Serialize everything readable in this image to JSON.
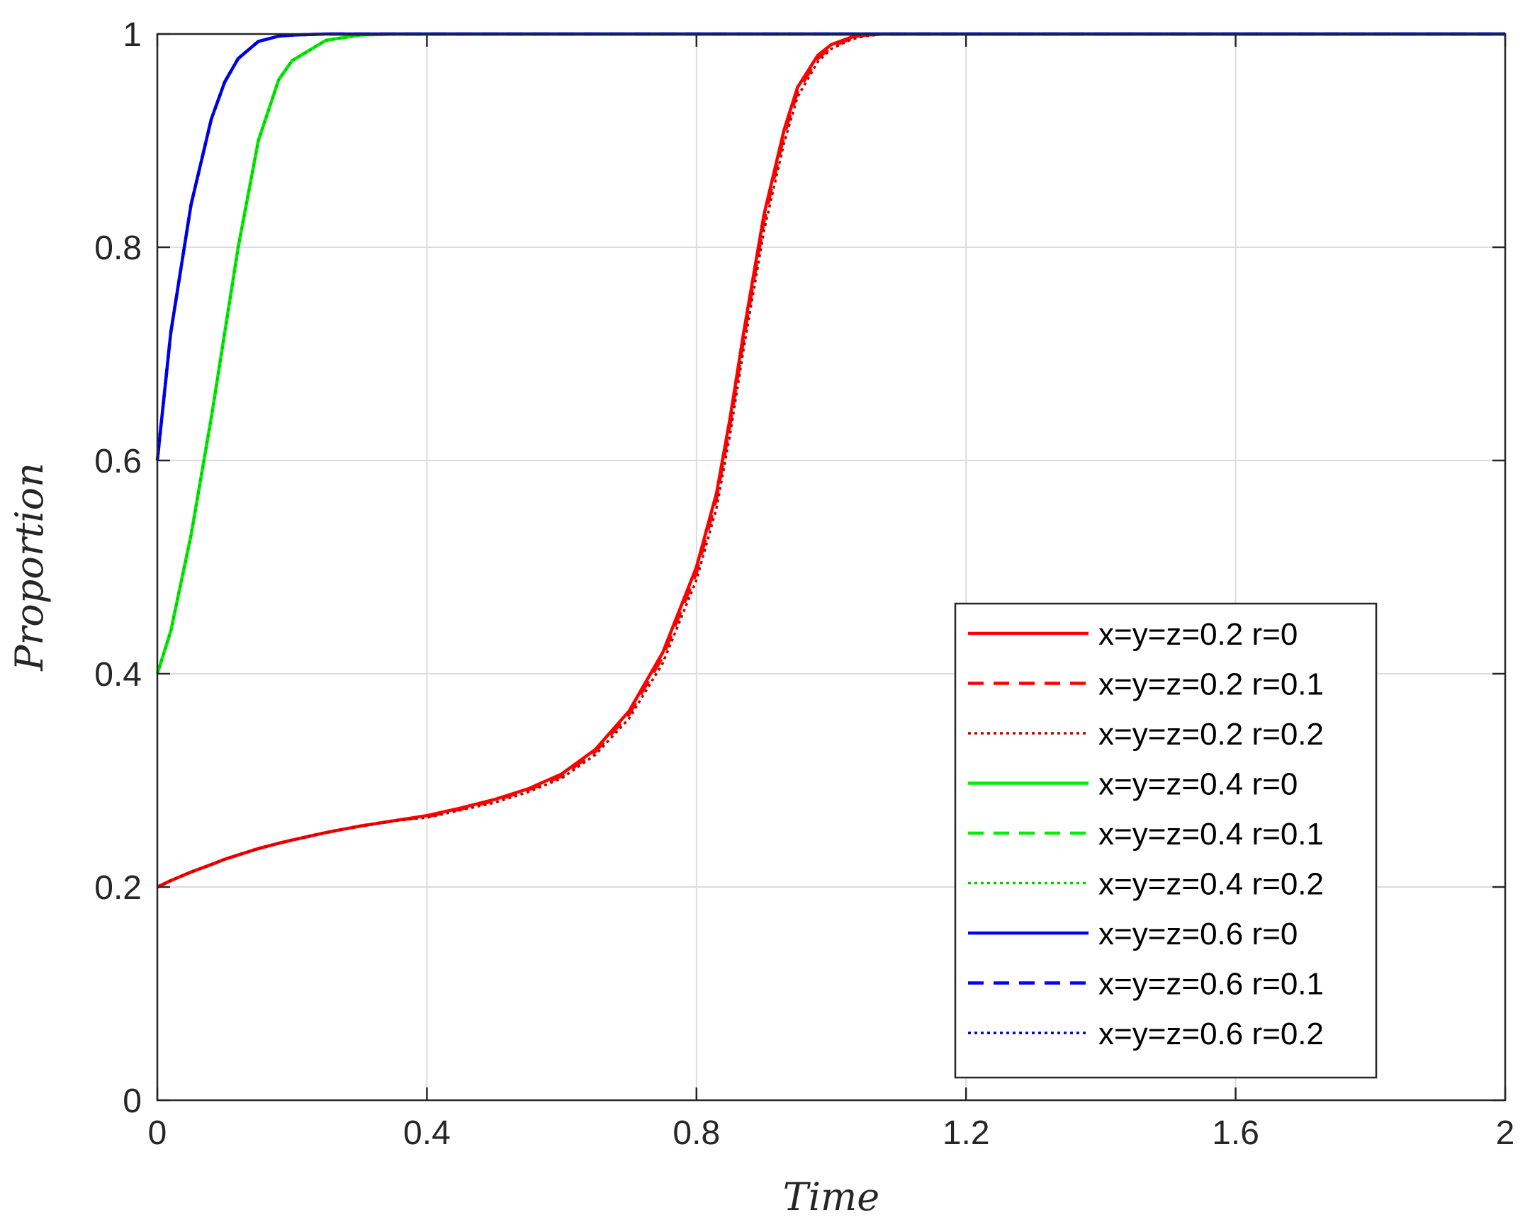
{
  "chart_data": {
    "type": "line",
    "xlabel": "Time",
    "ylabel": "Proportion",
    "xlim": [
      0,
      2
    ],
    "ylim": [
      0,
      1
    ],
    "xticks": [
      0,
      0.4,
      0.8,
      1.2,
      1.6,
      2
    ],
    "xtick_labels": [
      "0",
      "0.4",
      "0.8",
      "1.2",
      "1.6",
      "2"
    ],
    "yticks": [
      0,
      0.2,
      0.4,
      0.6,
      0.8,
      1
    ],
    "ytick_labels": [
      "0",
      "0.2",
      "0.4",
      "0.6",
      "0.8",
      "1"
    ],
    "grid": true,
    "legend_position": "bottom-right",
    "x": [
      0,
      0.02,
      0.05,
      0.08,
      0.1,
      0.12,
      0.15,
      0.18,
      0.2,
      0.25,
      0.3,
      0.35,
      0.4,
      0.45,
      0.5,
      0.55,
      0.6,
      0.65,
      0.7,
      0.75,
      0.8,
      0.83,
      0.85,
      0.87,
      0.9,
      0.93,
      0.95,
      0.98,
      1.0,
      1.03,
      1.05,
      1.08,
      1.1,
      1.15,
      1.2,
      1.3,
      1.4,
      1.5,
      1.6,
      1.7,
      1.8,
      1.9,
      2.0
    ],
    "series": [
      {
        "name": "x=y=z=0.2 r=0",
        "color": "#ff0000",
        "dash": "solid",
        "values": [
          0.2,
          0.206,
          0.214,
          0.221,
          0.226,
          0.23,
          0.236,
          0.241,
          0.244,
          0.251,
          0.257,
          0.262,
          0.267,
          0.274,
          0.282,
          0.292,
          0.306,
          0.329,
          0.365,
          0.42,
          0.5,
          0.57,
          0.64,
          0.72,
          0.83,
          0.91,
          0.95,
          0.98,
          0.99,
          0.997,
          0.999,
          1.0,
          1.0,
          1.0,
          1.0,
          1.0,
          1.0,
          1.0,
          1.0,
          1.0,
          1.0,
          1.0,
          1.0
        ]
      },
      {
        "name": "x=y=z=0.2 r=0.1",
        "color": "#ff0000",
        "dash": "dashed",
        "values": [
          0.2,
          0.206,
          0.214,
          0.221,
          0.226,
          0.23,
          0.236,
          0.241,
          0.244,
          0.251,
          0.257,
          0.262,
          0.266,
          0.273,
          0.281,
          0.291,
          0.304,
          0.327,
          0.362,
          0.416,
          0.495,
          0.565,
          0.634,
          0.714,
          0.824,
          0.905,
          0.946,
          0.977,
          0.988,
          0.996,
          0.999,
          1.0,
          1.0,
          1.0,
          1.0,
          1.0,
          1.0,
          1.0,
          1.0,
          1.0,
          1.0,
          1.0,
          1.0
        ]
      },
      {
        "name": "x=y=z=0.2 r=0.2",
        "color": "#c00000",
        "dash": "dotted",
        "values": [
          0.2,
          0.206,
          0.214,
          0.221,
          0.226,
          0.23,
          0.236,
          0.241,
          0.244,
          0.251,
          0.257,
          0.262,
          0.265,
          0.272,
          0.279,
          0.289,
          0.302,
          0.324,
          0.358,
          0.41,
          0.488,
          0.556,
          0.625,
          0.705,
          0.815,
          0.898,
          0.941,
          0.974,
          0.986,
          0.995,
          0.998,
          1.0,
          1.0,
          1.0,
          1.0,
          1.0,
          1.0,
          1.0,
          1.0,
          1.0,
          1.0,
          1.0,
          1.0
        ]
      },
      {
        "name": "x=y=z=0.4 r=0",
        "color": "#00ee00",
        "dash": "solid",
        "values": [
          0.4,
          0.44,
          0.53,
          0.64,
          0.72,
          0.8,
          0.9,
          0.957,
          0.975,
          0.994,
          0.999,
          1.0,
          1.0,
          1.0,
          1.0,
          1.0,
          1.0,
          1.0,
          1.0,
          1.0,
          1.0,
          1.0,
          1.0,
          1.0,
          1.0,
          1.0,
          1.0,
          1.0,
          1.0,
          1.0,
          1.0,
          1.0,
          1.0,
          1.0,
          1.0,
          1.0,
          1.0,
          1.0,
          1.0,
          1.0,
          1.0,
          1.0,
          1.0
        ]
      },
      {
        "name": "x=y=z=0.4 r=0.1",
        "color": "#00ee00",
        "dash": "dashed",
        "values": [
          0.4,
          0.44,
          0.53,
          0.64,
          0.72,
          0.8,
          0.9,
          0.957,
          0.975,
          0.994,
          0.999,
          1.0,
          1.0,
          1.0,
          1.0,
          1.0,
          1.0,
          1.0,
          1.0,
          1.0,
          1.0,
          1.0,
          1.0,
          1.0,
          1.0,
          1.0,
          1.0,
          1.0,
          1.0,
          1.0,
          1.0,
          1.0,
          1.0,
          1.0,
          1.0,
          1.0,
          1.0,
          1.0,
          1.0,
          1.0,
          1.0,
          1.0,
          1.0
        ]
      },
      {
        "name": "x=y=z=0.4 r=0.2",
        "color": "#00cc00",
        "dash": "dotted",
        "values": [
          0.4,
          0.44,
          0.53,
          0.64,
          0.72,
          0.8,
          0.9,
          0.957,
          0.975,
          0.994,
          0.999,
          1.0,
          1.0,
          1.0,
          1.0,
          1.0,
          1.0,
          1.0,
          1.0,
          1.0,
          1.0,
          1.0,
          1.0,
          1.0,
          1.0,
          1.0,
          1.0,
          1.0,
          1.0,
          1.0,
          1.0,
          1.0,
          1.0,
          1.0,
          1.0,
          1.0,
          1.0,
          1.0,
          1.0,
          1.0,
          1.0,
          1.0,
          1.0
        ]
      },
      {
        "name": "x=y=z=0.6 r=0",
        "color": "#0000ff",
        "dash": "solid",
        "values": [
          0.6,
          0.72,
          0.84,
          0.92,
          0.955,
          0.977,
          0.993,
          0.998,
          0.999,
          1.0,
          1.0,
          1.0,
          1.0,
          1.0,
          1.0,
          1.0,
          1.0,
          1.0,
          1.0,
          1.0,
          1.0,
          1.0,
          1.0,
          1.0,
          1.0,
          1.0,
          1.0,
          1.0,
          1.0,
          1.0,
          1.0,
          1.0,
          1.0,
          1.0,
          1.0,
          1.0,
          1.0,
          1.0,
          1.0,
          1.0,
          1.0,
          1.0,
          1.0
        ]
      },
      {
        "name": "x=y=z=0.6 r=0.1",
        "color": "#0000ff",
        "dash": "dashed",
        "values": [
          0.6,
          0.72,
          0.84,
          0.92,
          0.955,
          0.977,
          0.993,
          0.998,
          0.999,
          1.0,
          1.0,
          1.0,
          1.0,
          1.0,
          1.0,
          1.0,
          1.0,
          1.0,
          1.0,
          1.0,
          1.0,
          1.0,
          1.0,
          1.0,
          1.0,
          1.0,
          1.0,
          1.0,
          1.0,
          1.0,
          1.0,
          1.0,
          1.0,
          1.0,
          1.0,
          1.0,
          1.0,
          1.0,
          1.0,
          1.0,
          1.0,
          1.0,
          1.0
        ]
      },
      {
        "name": "x=y=z=0.6 r=0.2",
        "color": "#0000bb",
        "dash": "dotted",
        "values": [
          0.6,
          0.72,
          0.84,
          0.92,
          0.955,
          0.977,
          0.993,
          0.998,
          0.999,
          1.0,
          1.0,
          1.0,
          1.0,
          1.0,
          1.0,
          1.0,
          1.0,
          1.0,
          1.0,
          1.0,
          1.0,
          1.0,
          1.0,
          1.0,
          1.0,
          1.0,
          1.0,
          1.0,
          1.0,
          1.0,
          1.0,
          1.0,
          1.0,
          1.0,
          1.0,
          1.0,
          1.0,
          1.0,
          1.0,
          1.0,
          1.0,
          1.0,
          1.0
        ]
      }
    ]
  }
}
